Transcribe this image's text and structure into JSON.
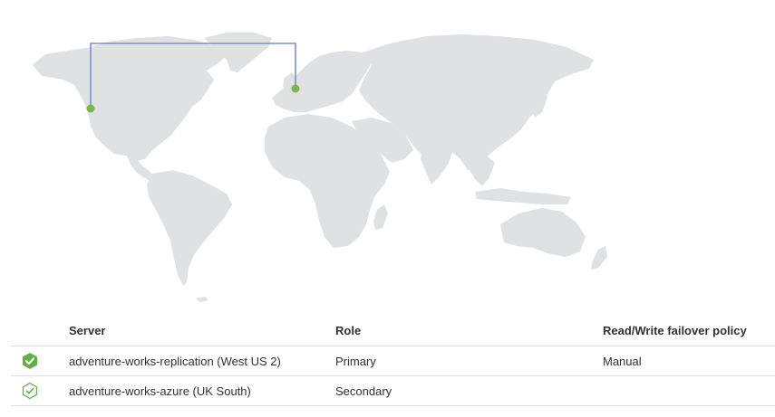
{
  "map": {
    "pins": [
      {
        "name": "west-us-2",
        "color": "#7ab648"
      },
      {
        "name": "uk-south",
        "color": "#7ab648"
      }
    ],
    "link_color": "#7b8ed9",
    "land_color": "#dfe1e3"
  },
  "grid": {
    "headers": {
      "server": "Server",
      "role": "Role",
      "policy": "Read/Write failover policy"
    },
    "rows": [
      {
        "status_icon": "filled-check-hexagon-icon",
        "server": "adventure-works-replication (West US 2)",
        "role": "Primary",
        "policy": "Manual"
      },
      {
        "status_icon": "outline-check-hexagon-icon",
        "server": "adventure-works-azure (UK South)",
        "role": "Secondary",
        "policy": ""
      }
    ]
  },
  "colors": {
    "status_green": "#5db042",
    "divider": "#e1dfdd"
  }
}
